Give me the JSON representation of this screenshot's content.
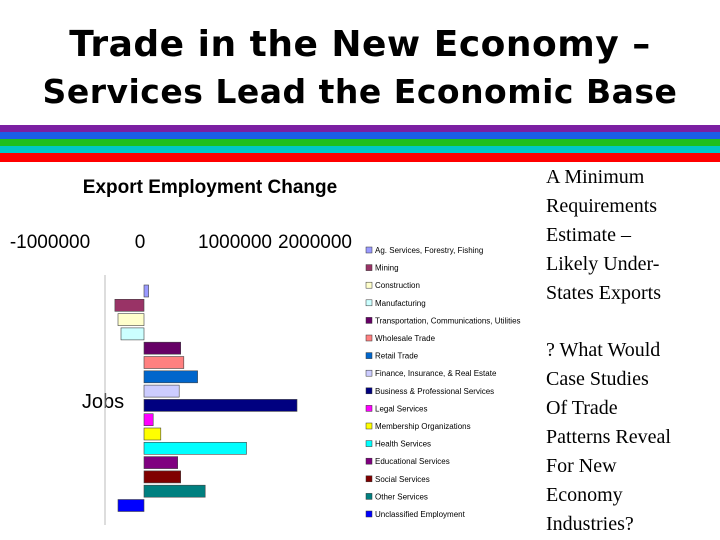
{
  "slide": {
    "title_line1": "Trade in the New Economy –",
    "title_line2": "Services Lead the Economic Base",
    "stripe_colors": [
      "#7b1fa2",
      "#1b5ee8",
      "#1fbf1f",
      "#00c8c8",
      "#ff0000"
    ],
    "side_text_1": "A Minimum\nRequirements\nEstimate –\nLikely Under-\nStates Exports",
    "side_text_2": "? What Would\nCase Studies\nOf Trade\nPatterns Reveal\nFor New\nEconomy\nIndustries?"
  },
  "chart_data": {
    "type": "bar",
    "orientation": "horizontal",
    "title": "Export Employment Change",
    "ylabel": "Jobs",
    "xlim": [
      -1000000,
      2000000
    ],
    "x_ticks": [
      "-1000000",
      "0",
      "1000000",
      "2000000"
    ],
    "grid": false,
    "legend_position": "right",
    "categories": [
      "Ag. Services, Forestry, Fishing",
      "Mining",
      "Construction",
      "Manufacturing",
      "Transportation, Communications, Utilities",
      "Wholesale Trade",
      "Retail Trade",
      "Finance, Insurance, & Real Estate",
      "Business & Professional Services",
      "Legal Services",
      "Membership Organizations",
      "Health Services",
      "Educational Services",
      "Social Services",
      "Other Services",
      "Unclassified Employment"
    ],
    "values": [
      30000,
      -190000,
      -170000,
      -150000,
      240000,
      260000,
      350000,
      230000,
      1000000,
      60000,
      110000,
      670000,
      220000,
      240000,
      400000,
      -170000
    ],
    "colors": [
      "#9a9aff",
      "#993366",
      "#ffffcc",
      "#ccffff",
      "#660066",
      "#ff8080",
      "#0066cc",
      "#ccccff",
      "#000080",
      "#ff00ff",
      "#ffff00",
      "#00ffff",
      "#800080",
      "#800000",
      "#008080",
      "#0000ff"
    ]
  }
}
